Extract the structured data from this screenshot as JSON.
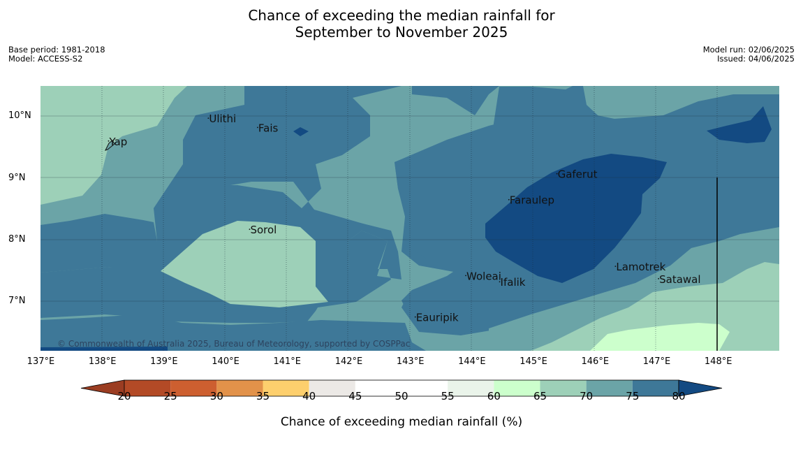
{
  "title": {
    "line1": "Chance of exceeding the median rainfall for",
    "line2": "September to November 2025"
  },
  "meta_left": {
    "base_period": "Base period: 1981-2018",
    "model": "Model: ACCESS-S2"
  },
  "meta_right": {
    "model_run": "Model run: 02/06/2025",
    "issued": "Issued: 04/06/2025"
  },
  "x_ticks": [
    "137°E",
    "138°E",
    "139°E",
    "140°E",
    "141°E",
    "142°E",
    "143°E",
    "144°E",
    "145°E",
    "146°E",
    "147°E",
    "148°E"
  ],
  "y_ticks": [
    "10°N",
    "9°N",
    "8°N",
    "7°N"
  ],
  "places": [
    {
      "name": "Yap",
      "lon": 138.1,
      "lat": 9.53
    },
    {
      "name": "Ulithi",
      "lon": 139.72,
      "lat": 9.9
    },
    {
      "name": "Fais",
      "lon": 140.52,
      "lat": 9.75
    },
    {
      "name": "Gaferut",
      "lon": 145.38,
      "lat": 9.0
    },
    {
      "name": "Faraulep",
      "lon": 144.6,
      "lat": 8.58
    },
    {
      "name": "Sorol",
      "lon": 140.39,
      "lat": 8.1
    },
    {
      "name": "Lamotrek",
      "lon": 146.33,
      "lat": 7.5
    },
    {
      "name": "Woleai",
      "lon": 143.9,
      "lat": 7.35
    },
    {
      "name": "Ifalik",
      "lon": 144.45,
      "lat": 7.25
    },
    {
      "name": "Satawal",
      "lon": 147.03,
      "lat": 7.3
    },
    {
      "name": "Eauripik",
      "lon": 143.08,
      "lat": 6.68
    }
  ],
  "copyright": "© Commonwealth of Australia 2025, Bureau of Meteorology, supported by COSPPac",
  "colorbar": {
    "title": "Chance of exceeding median rainfall (%)",
    "labels": [
      "20",
      "25",
      "30",
      "35",
      "40",
      "45",
      "50",
      "55",
      "60",
      "65",
      "70",
      "75",
      "80"
    ],
    "colors": [
      "#b34a26",
      "#cd5f30",
      "#e2924a",
      "#fdcf6d",
      "#ece9e6",
      "#ffffff",
      "#ffffff",
      "#eaf4ea",
      "#ccffcc",
      "#9dd0b8",
      "#6ba4a7",
      "#3e7898"
    ],
    "under_color": "#9b3d22",
    "over_color": "#134a82"
  },
  "map_colors": {
    "c65": "#ccffcc",
    "c70": "#9dd0b8",
    "c75": "#6ba4a7",
    "c80": "#3e7898",
    "c85": "#134a82"
  }
}
